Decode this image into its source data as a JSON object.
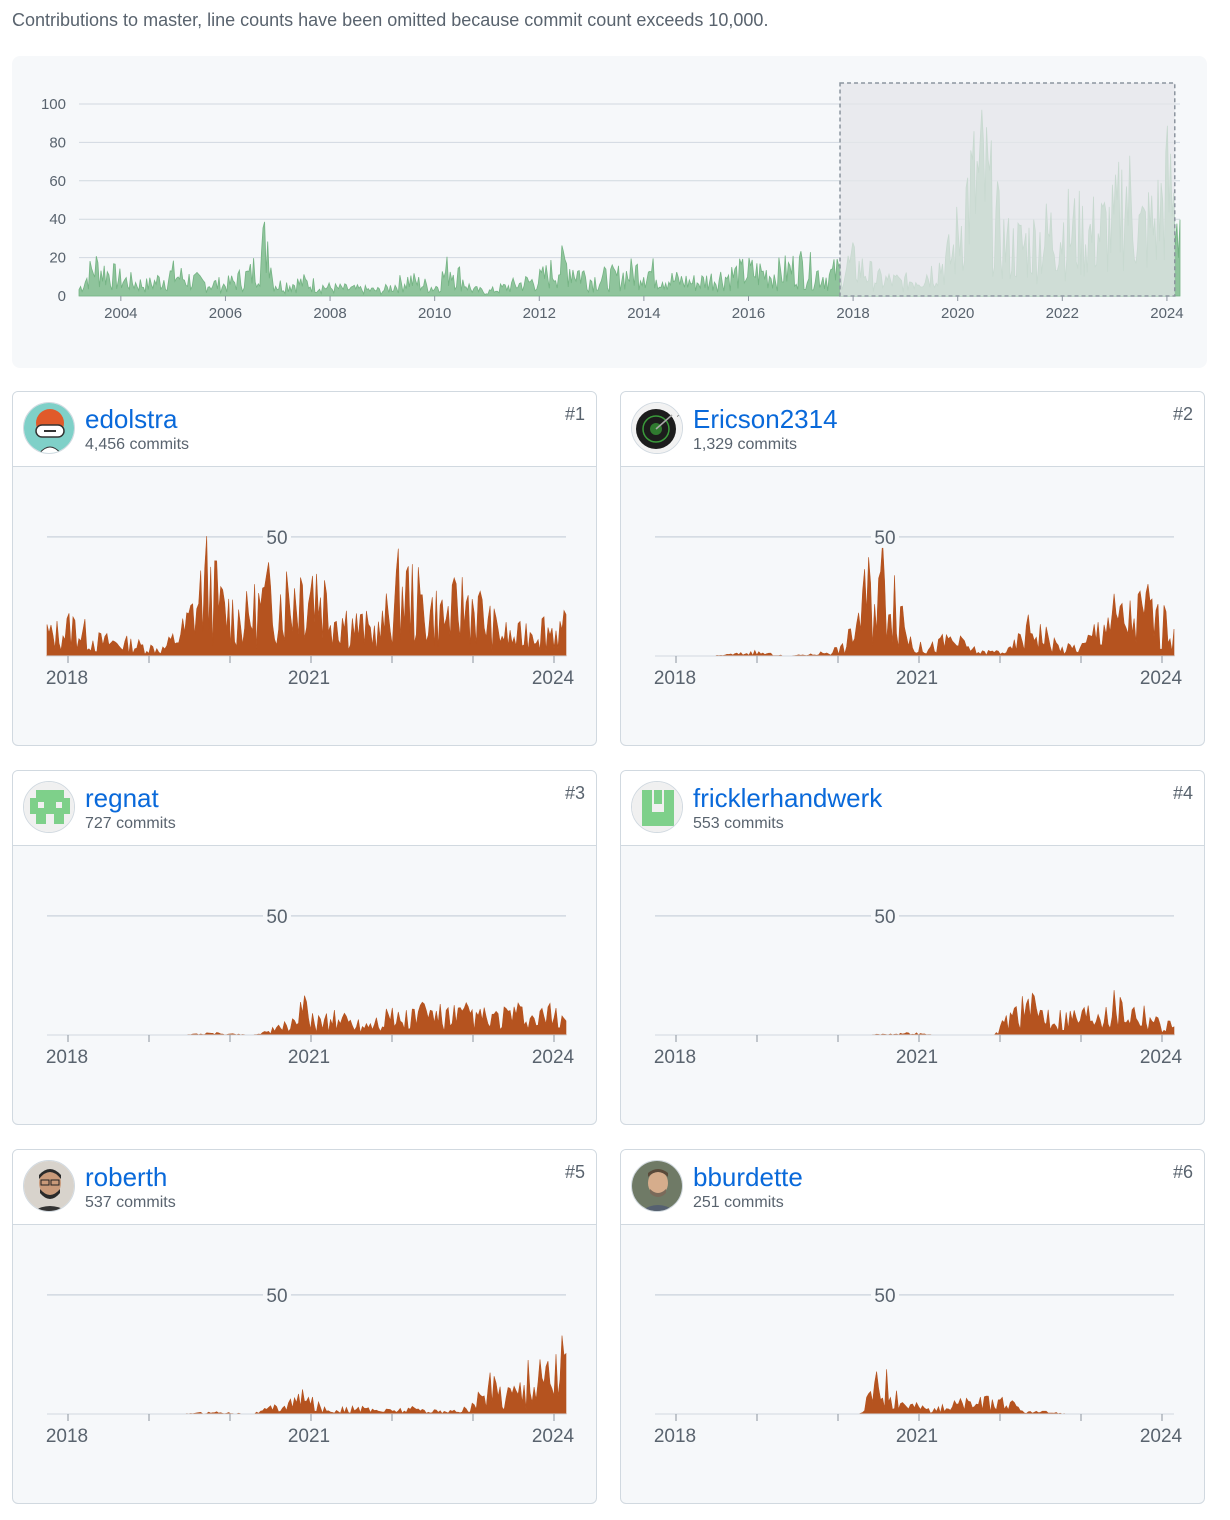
{
  "notice": "Contributions to master, line counts have been omitted because commit count exceeds 10,000.",
  "colors": {
    "overview_fill": "#8fc49c",
    "overview_stroke": "#74b383",
    "contributor_fill": "#b5531f",
    "link": "#0969da",
    "grid": "#d1d9e0",
    "selection": "#e4e6ea"
  },
  "chart_data": [
    {
      "type": "area",
      "title": "",
      "x_ticks": [
        "2004",
        "2006",
        "2008",
        "2010",
        "2012",
        "2014",
        "2016",
        "2018",
        "2020",
        "2022",
        "2024"
      ],
      "y_ticks": [
        "0",
        "20",
        "40",
        "60",
        "80",
        "100"
      ],
      "ylim": [
        0,
        100
      ],
      "xlim": [
        2003.2,
        2024.25
      ],
      "grid": true,
      "selection_range": [
        2017.75,
        2024.15
      ],
      "series": [
        {
          "x": [
            2003.2,
            2003.5,
            2004.0,
            2004.5,
            2005.0,
            2005.5,
            2006.0,
            2006.5,
            2006.85,
            2006.9,
            2007.0,
            2007.5,
            2008.0,
            2008.5,
            2009.0,
            2009.5,
            2010.0,
            2010.3,
            2010.7,
            2011.0,
            2011.5,
            2012.0,
            2012.5,
            2013.0,
            2013.5,
            2014.0,
            2014.5,
            2015.0,
            2015.5,
            2016.0,
            2016.5,
            2017.0,
            2017.5,
            2018.0,
            2018.5,
            2019.0,
            2019.5,
            2019.9,
            2020.2,
            2020.5,
            2020.8,
            2021.0,
            2021.5,
            2022.0,
            2022.5,
            2023.0,
            2023.2,
            2023.5,
            2023.8,
            2024.0,
            2024.2
          ],
          "y": [
            5,
            22,
            12,
            8,
            16,
            10,
            8,
            16,
            46,
            12,
            8,
            10,
            6,
            5,
            4,
            12,
            6,
            22,
            5,
            3,
            8,
            12,
            24,
            12,
            14,
            20,
            12,
            10,
            14,
            18,
            16,
            22,
            14,
            24,
            12,
            10,
            18,
            30,
            75,
            90,
            45,
            35,
            40,
            50,
            45,
            52,
            78,
            48,
            55,
            80,
            60
          ]
        }
      ]
    },
    {
      "type": "area",
      "name": "edolstra",
      "ytick": "50",
      "x_ticks": [
        "2018",
        "2021",
        "2024"
      ],
      "ylim": [
        0,
        55
      ],
      "x": [
        2017.0,
        2017.3,
        2017.6,
        2017.9,
        2018.2,
        2018.5,
        2018.8,
        2019.1,
        2019.4,
        2019.6,
        2019.9,
        2020.2,
        2020.5,
        2020.8,
        2021.1,
        2021.4,
        2021.7,
        2022.0,
        2022.3,
        2022.6,
        2022.9,
        2023.2,
        2023.5,
        2023.8,
        2024.0
      ],
      "y": [
        28,
        12,
        18,
        9,
        8,
        6,
        4,
        16,
        46,
        28,
        22,
        34,
        38,
        47,
        26,
        18,
        14,
        42,
        28,
        24,
        34,
        18,
        10,
        18,
        16
      ]
    },
    {
      "type": "area",
      "name": "Ericson2314",
      "ytick": "50",
      "x_ticks": [
        "2018",
        "2021",
        "2024"
      ],
      "ylim": [
        0,
        55
      ],
      "x": [
        2017.0,
        2018.0,
        2018.6,
        2019.0,
        2019.4,
        2019.8,
        2020.1,
        2020.4,
        2020.7,
        2020.9,
        2021.2,
        2021.6,
        2022.0,
        2022.3,
        2022.7,
        2023.0,
        2023.3,
        2023.6,
        2023.9,
        2024.0
      ],
      "y": [
        0,
        0,
        2,
        0,
        1,
        5,
        38,
        50,
        6,
        4,
        10,
        2,
        3,
        18,
        4,
        6,
        24,
        22,
        30,
        18
      ]
    },
    {
      "type": "area",
      "name": "regnat",
      "ytick": "50",
      "x_ticks": [
        "2018",
        "2021",
        "2024"
      ],
      "ylim": [
        0,
        55
      ],
      "x": [
        2017.0,
        2018.0,
        2019.0,
        2019.5,
        2020.0,
        2020.4,
        2020.7,
        2020.9,
        2021.2,
        2021.5,
        2021.8,
        2022.0,
        2022.3,
        2022.6,
        2022.9,
        2023.2,
        2023.5,
        2023.8,
        2024.0
      ],
      "y": [
        0,
        0,
        0,
        1,
        0,
        4,
        14,
        8,
        10,
        6,
        12,
        8,
        14,
        10,
        12,
        9,
        12,
        8,
        12
      ]
    },
    {
      "type": "area",
      "name": "fricklerhandwerk",
      "ytick": "50",
      "x_ticks": [
        "2018",
        "2021",
        "2024"
      ],
      "ylim": [
        0,
        55
      ],
      "x": [
        2017.0,
        2018.0,
        2020.0,
        2020.7,
        2021.0,
        2021.8,
        2022.1,
        2022.4,
        2022.7,
        2023.0,
        2023.3,
        2023.6,
        2023.9,
        2024.0
      ],
      "y": [
        0,
        0,
        0,
        1,
        0,
        0,
        16,
        14,
        10,
        12,
        18,
        15,
        12,
        6
      ]
    },
    {
      "type": "area",
      "name": "roberth",
      "ytick": "50",
      "x_ticks": [
        "2018",
        "2021",
        "2024"
      ],
      "ylim": [
        0,
        55
      ],
      "x": [
        2017.0,
        2018.0,
        2019.0,
        2019.5,
        2020.0,
        2020.7,
        2021.0,
        2021.4,
        2021.8,
        2022.2,
        2022.6,
        2022.9,
        2023.2,
        2023.5,
        2023.8,
        2024.0
      ],
      "y": [
        0,
        0,
        0,
        1,
        0,
        9,
        2,
        3,
        2,
        3,
        1,
        3,
        16,
        14,
        22,
        28
      ]
    },
    {
      "type": "area",
      "name": "bburdette",
      "ytick": "50",
      "x_ticks": [
        "2018",
        "2021",
        "2024"
      ],
      "ylim": [
        0,
        55
      ],
      "x": [
        2017.0,
        2018.0,
        2019.0,
        2020.0,
        2020.2,
        2020.4,
        2020.6,
        2020.8,
        2021.0,
        2021.3,
        2021.6,
        2021.9,
        2022.2,
        2022.5,
        2022.8,
        2023.0,
        2024.0
      ],
      "y": [
        0,
        0,
        0,
        0,
        16,
        18,
        6,
        4,
        2,
        6,
        6,
        8,
        1,
        1,
        0,
        0,
        0
      ]
    }
  ],
  "contributors": [
    {
      "name": "edolstra",
      "commits": "4,456 commits",
      "rank": "#1",
      "ytick": "50",
      "x_ticks": [
        "2018",
        "2021",
        "2024"
      ],
      "avatar": "cartoon-avatar"
    },
    {
      "name": "Ericson2314",
      "commits": "1,329 commits",
      "rank": "#2",
      "ytick": "50",
      "x_ticks": [
        "2018",
        "2021",
        "2024"
      ],
      "avatar": "sonar-avatar"
    },
    {
      "name": "regnat",
      "commits": "727 commits",
      "rank": "#3",
      "ytick": "50",
      "x_ticks": [
        "2018",
        "2021",
        "2024"
      ],
      "avatar": "identicon-avatar"
    },
    {
      "name": "fricklerhandwerk",
      "commits": "553 commits",
      "rank": "#4",
      "ytick": "50",
      "x_ticks": [
        "2018",
        "2021",
        "2024"
      ],
      "avatar": "identicon-avatar"
    },
    {
      "name": "roberth",
      "commits": "537 commits",
      "rank": "#5",
      "ytick": "50",
      "x_ticks": [
        "2018",
        "2021",
        "2024"
      ],
      "avatar": "photo-avatar"
    },
    {
      "name": "bburdette",
      "commits": "251 commits",
      "rank": "#6",
      "ytick": "50",
      "x_ticks": [
        "2018",
        "2021",
        "2024"
      ],
      "avatar": "photo-avatar"
    }
  ]
}
